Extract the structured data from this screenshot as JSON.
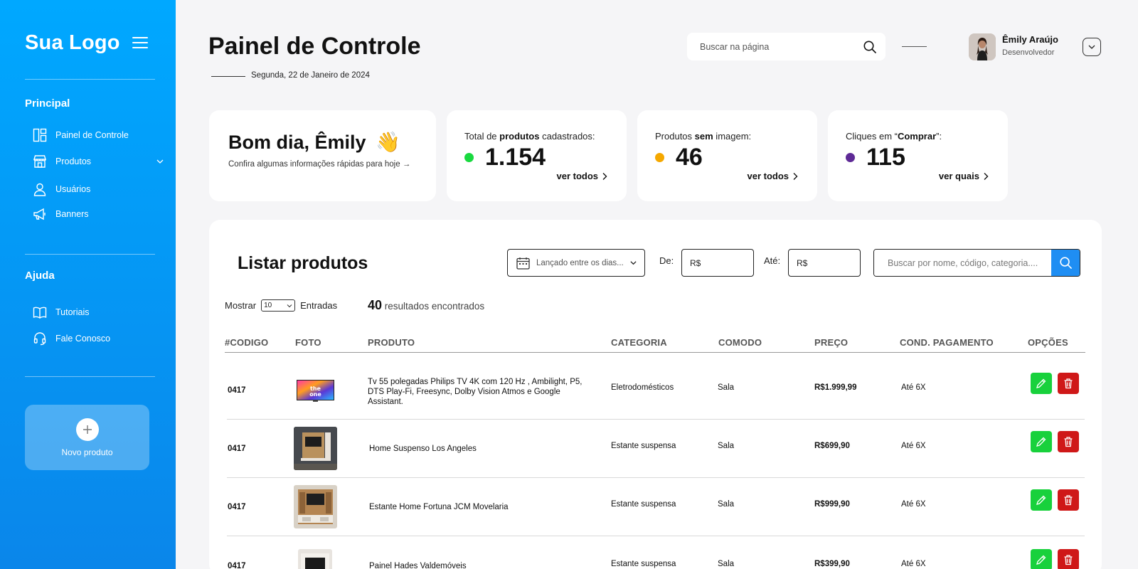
{
  "sidebar": {
    "logo": "Sua Logo",
    "sections": [
      {
        "title": "Principal",
        "items": [
          {
            "label": "Painel de Controle",
            "icon": "dashboard-icon"
          },
          {
            "label": "Produtos",
            "icon": "store-icon",
            "expandable": true
          },
          {
            "label": "Usuários",
            "icon": "user-icon"
          },
          {
            "label": "Banners",
            "icon": "megaphone-icon"
          }
        ]
      },
      {
        "title": "Ajuda",
        "items": [
          {
            "label": "Tutoriais",
            "icon": "book-icon"
          },
          {
            "label": "Fale Conosco",
            "icon": "headset-icon"
          }
        ]
      }
    ],
    "new_product_label": "Novo produto"
  },
  "header": {
    "title": "Painel de Controle",
    "date": "Segunda, 22 de Janeiro de 2024",
    "search_placeholder": "Buscar na página",
    "user": {
      "name": "Êmily Araújo",
      "role": "Desenvolvedor"
    }
  },
  "cards": {
    "greeting": {
      "title": "Bom dia, Êmily",
      "emoji": "👋",
      "subtitle": "Confira algumas informações rápidas para hoje →"
    },
    "stats": [
      {
        "label_pre": "Total de ",
        "label_bold": "produtos",
        "label_post": " cadastrados:",
        "value": "1.154",
        "link": "ver todos",
        "color": "#19d93f"
      },
      {
        "label_pre": "Produtos ",
        "label_bold": "sem",
        "label_post": " imagem:",
        "value": "46",
        "link": "ver todos",
        "color": "#f5a800"
      },
      {
        "label_pre": "Cliques em “",
        "label_bold": "Comprar",
        "label_post": "”:",
        "value": "115",
        "link": "ver quais",
        "color": "#5e2a96"
      }
    ]
  },
  "products": {
    "title": "Listar produtos",
    "date_filter_placeholder": "Lançado entre os dias...",
    "from_label": "De:",
    "to_label": "Até:",
    "price_placeholder": "R$",
    "search_placeholder": "Buscar por nome, código, categoria....",
    "show_label": "Mostrar",
    "show_value": "10",
    "entries_label": "Entradas",
    "results_count": "40",
    "results_label": "resultados encontrados",
    "columns": [
      "#CODIGO",
      "FOTO",
      "PRODUTO",
      "CATEGORIA",
      "COMODO",
      "PREÇO",
      "COND. PAGAMENTO",
      "OPÇÕES"
    ],
    "rows": [
      {
        "code": "0417",
        "photo": "tv-photo",
        "product": "Tv 55 polegadas Philips TV 4K com 120 Hz , Ambilight, P5, DTS Play-Fi, Freesync, Dolby Vision Atmos e Google Assistant.",
        "category": "Eletrodomésticos",
        "room": "Sala",
        "price": "R$1.999,99",
        "payment": "Até 6X"
      },
      {
        "code": "0417",
        "photo": "panel-photo",
        "product": "Home Suspenso Los Angeles",
        "category": "Estante suspensa",
        "room": "Sala",
        "price": "R$699,90",
        "payment": "Até 6X"
      },
      {
        "code": "0417",
        "photo": "shelf-photo",
        "product": "Estante Home Fortuna JCM Movelaria",
        "category": "Estante suspensa",
        "room": "Sala",
        "price": "R$999,90",
        "payment": "Até 6X"
      },
      {
        "code": "0417",
        "photo": "rack-photo",
        "product": "Painel Hades Valdemóveis",
        "category": "Estante suspensa",
        "room": "Sala",
        "price": "R$399,90",
        "payment": "Até 6X"
      }
    ]
  },
  "colors": {
    "sidebar_top": "#00a8ff",
    "sidebar_bottom": "#0a86ea",
    "edit": "#18d13c",
    "delete": "#cf1818",
    "search_button": "#1f8ef3"
  }
}
